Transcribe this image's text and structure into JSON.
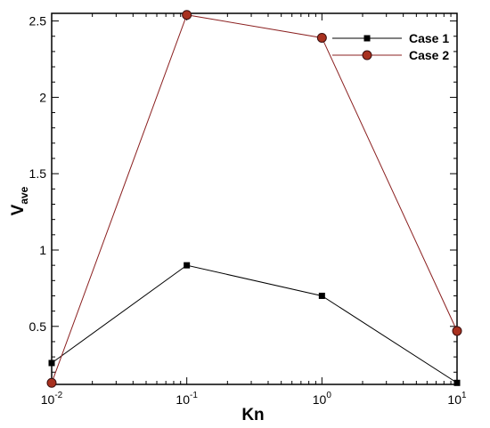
{
  "chart_data": {
    "type": "line",
    "xlabel": "Kn",
    "ylabel": "V",
    "ylabel_sub": "ave",
    "x_scale": "log",
    "xlim": [
      0.01,
      10
    ],
    "ylim": [
      0.12,
      2.55
    ],
    "x": [
      0.01,
      0.1,
      1,
      10
    ],
    "x_tick_labels": [
      {
        "value": 0.01,
        "base": "10",
        "exp": "-2"
      },
      {
        "value": 0.1,
        "base": "10",
        "exp": "-1"
      },
      {
        "value": 1,
        "base": "10",
        "exp": "0"
      },
      {
        "value": 10,
        "base": "10",
        "exp": "1"
      }
    ],
    "y_ticks": [
      0.5,
      1,
      1.5,
      2,
      2.5
    ],
    "y_tick_labels": [
      "0.5",
      "1",
      "1.5",
      "2",
      "2.5"
    ],
    "legend_position": "top-right",
    "grid": false,
    "series": [
      {
        "name": "Case 1",
        "values": [
          0.26,
          0.9,
          0.7,
          0.13
        ],
        "color": "#000000",
        "marker": "square"
      },
      {
        "name": "Case 2",
        "values": [
          0.13,
          2.54,
          2.39,
          0.47
        ],
        "color": "#8b2020",
        "marker_fill": "#a8311f",
        "marker": "circle"
      }
    ]
  }
}
